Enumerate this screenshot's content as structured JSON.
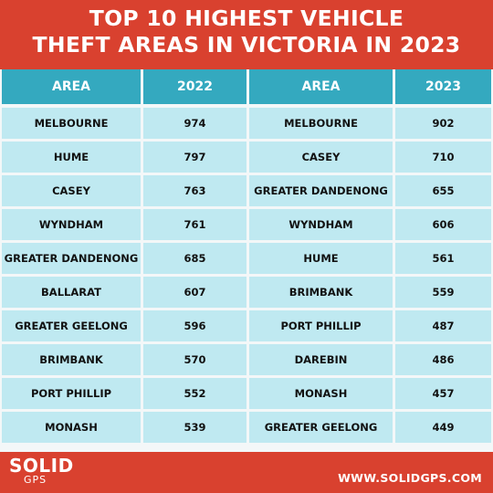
{
  "header": {
    "title_line1": "TOP 10 HIGHEST VEHICLE",
    "title_line2": "THEFT AREAS IN VICTORIA IN 2023"
  },
  "chart_data": {
    "type": "table",
    "title": "TOP 10 HIGHEST VEHICLE THEFT AREAS IN VICTORIA IN 2023",
    "columns": [
      "AREA",
      "2022",
      "AREA",
      "2023"
    ],
    "rows": [
      [
        "MELBOURNE",
        "974",
        "MELBOURNE",
        "902"
      ],
      [
        "HUME",
        "797",
        "CASEY",
        "710"
      ],
      [
        "CASEY",
        "763",
        "GREATER DANDENONG",
        "655"
      ],
      [
        "WYNDHAM",
        "761",
        "WYNDHAM",
        "606"
      ],
      [
        "GREATER DANDENONG",
        "685",
        "HUME",
        "561"
      ],
      [
        "BALLARAT",
        "607",
        "BRIMBANK",
        "559"
      ],
      [
        "GREATER GEELONG",
        "596",
        "PORT PHILLIP",
        "487"
      ],
      [
        "BRIMBANK",
        "570",
        "DAREBIN",
        "486"
      ],
      [
        "PORT PHILLIP",
        "552",
        "MONASH",
        "457"
      ],
      [
        "MONASH",
        "539",
        "GREATER GEELONG",
        "449"
      ]
    ]
  },
  "footer": {
    "logo_main": "SOLID",
    "logo_sub": "GPS",
    "url": "WWW.SOLIDGPS.COM"
  },
  "colors": {
    "background": "#d9412f",
    "header_fill": "#34a9bf",
    "cell_fill": "#bfe9f1"
  }
}
